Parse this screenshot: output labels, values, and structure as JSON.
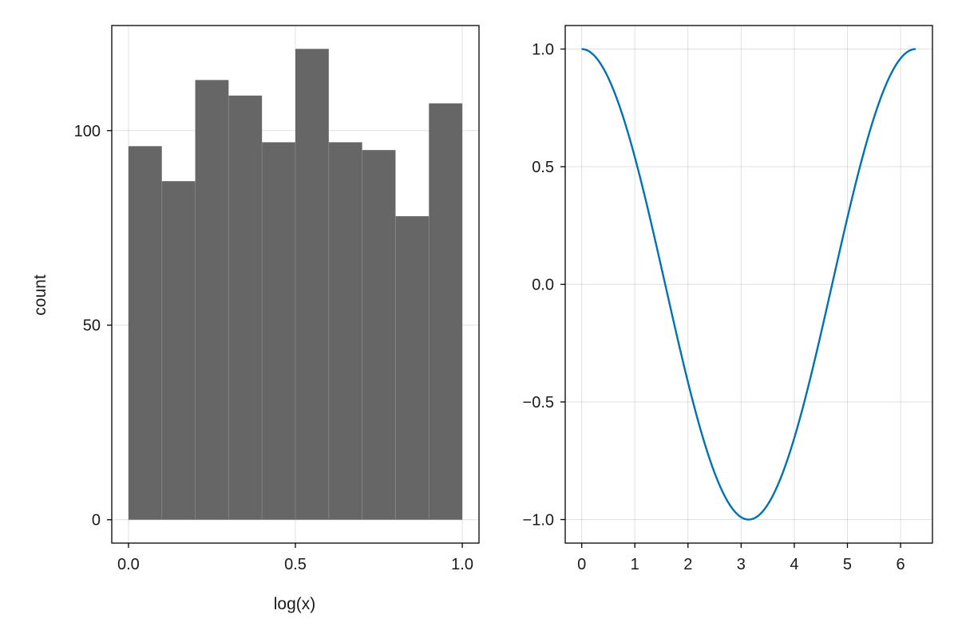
{
  "chart_data": [
    {
      "type": "bar",
      "variant": "histogram",
      "xlabel": "log(x)",
      "ylabel": "count",
      "bin_edges": [
        0.0,
        0.1,
        0.2,
        0.3,
        0.4,
        0.5,
        0.6,
        0.7,
        0.8,
        0.9,
        1.0
      ],
      "values": [
        96,
        87,
        113,
        109,
        97,
        121,
        97,
        95,
        78,
        107
      ],
      "xlim": [
        -0.05,
        1.05
      ],
      "ylim": [
        -6,
        127
      ],
      "xticks": [
        0.0,
        0.5,
        1.0
      ],
      "xtick_labels": [
        "0.0",
        "0.5",
        "1.0"
      ],
      "yticks": [
        0,
        50,
        100
      ],
      "ytick_labels": [
        "0",
        "50",
        "100"
      ],
      "grid": true,
      "bar_color": "#666666"
    },
    {
      "type": "line",
      "function": "cos(x)",
      "x_range": [
        0,
        6.2832
      ],
      "series": [
        {
          "color": "#0072b2"
        }
      ],
      "xlabel": "",
      "ylabel": "",
      "xlim": [
        -0.31,
        6.6
      ],
      "ylim": [
        -1.1,
        1.1
      ],
      "xticks": [
        0,
        1,
        2,
        3,
        4,
        5,
        6
      ],
      "xtick_labels": [
        "0",
        "1",
        "2",
        "3",
        "4",
        "5",
        "6"
      ],
      "yticks": [
        -1.0,
        -0.5,
        0.0,
        0.5,
        1.0
      ],
      "ytick_labels": [
        "−1.0",
        "−0.5",
        "0.0",
        "0.5",
        "1.0"
      ],
      "grid": true
    }
  ]
}
